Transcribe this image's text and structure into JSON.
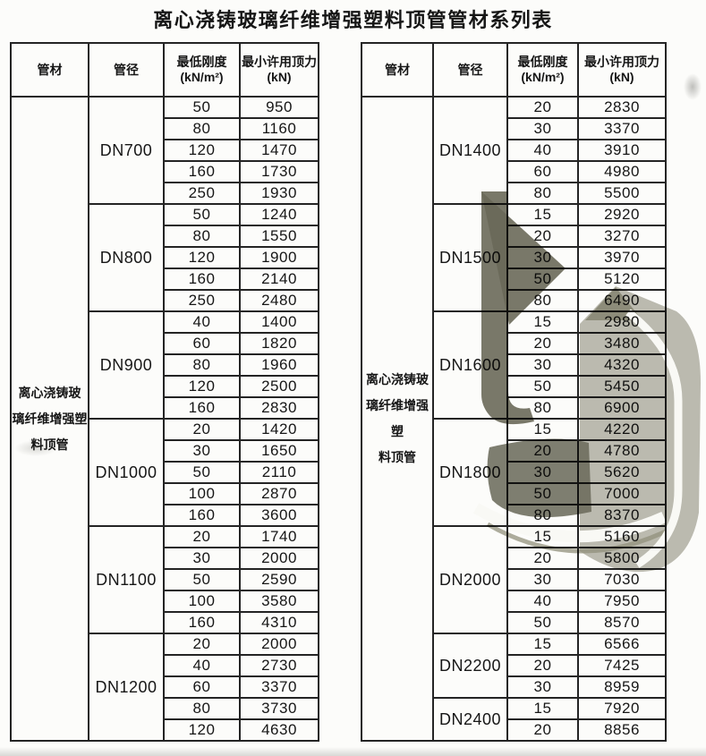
{
  "title": "离心浇铸玻璃纤维增强塑料顶管管材系列表",
  "columns": {
    "material": "管材",
    "diameter": "管径",
    "stiffness": "最低刚度\n(kN/m²)",
    "force": "最小许用顶力\n(kN)"
  },
  "material_label": "离心浇铸玻\n璃纤维增强塑\n料顶管",
  "left_table": {
    "groups": [
      {
        "dn": "DN700",
        "rows": [
          [
            "50",
            "950"
          ],
          [
            "80",
            "1160"
          ],
          [
            "120",
            "1470"
          ],
          [
            "160",
            "1730"
          ],
          [
            "250",
            "1930"
          ]
        ]
      },
      {
        "dn": "DN800",
        "rows": [
          [
            "50",
            "1240"
          ],
          [
            "80",
            "1550"
          ],
          [
            "120",
            "1900"
          ],
          [
            "160",
            "2140"
          ],
          [
            "250",
            "2480"
          ]
        ]
      },
      {
        "dn": "DN900",
        "rows": [
          [
            "40",
            "1400"
          ],
          [
            "60",
            "1820"
          ],
          [
            "80",
            "1960"
          ],
          [
            "120",
            "2500"
          ],
          [
            "160",
            "2830"
          ]
        ]
      },
      {
        "dn": "DN1000",
        "rows": [
          [
            "20",
            "1420"
          ],
          [
            "30",
            "1650"
          ],
          [
            "50",
            "2110"
          ],
          [
            "100",
            "2870"
          ],
          [
            "160",
            "3600"
          ]
        ]
      },
      {
        "dn": "DN1100",
        "rows": [
          [
            "20",
            "1740"
          ],
          [
            "30",
            "2000"
          ],
          [
            "50",
            "2590"
          ],
          [
            "100",
            "3580"
          ],
          [
            "160",
            "4310"
          ]
        ]
      },
      {
        "dn": "DN1200",
        "rows": [
          [
            "20",
            "2000"
          ],
          [
            "40",
            "2730"
          ],
          [
            "60",
            "3370"
          ],
          [
            "80",
            "3730"
          ],
          [
            "120",
            "4630"
          ]
        ]
      }
    ]
  },
  "right_table": {
    "groups": [
      {
        "dn": "DN1400",
        "rows": [
          [
            "20",
            "2830"
          ],
          [
            "30",
            "3370"
          ],
          [
            "40",
            "3910"
          ],
          [
            "60",
            "4980"
          ],
          [
            "80",
            "5500"
          ]
        ]
      },
      {
        "dn": "DN1500",
        "rows": [
          [
            "15",
            "2920"
          ],
          [
            "20",
            "3270"
          ],
          [
            "30",
            "3970"
          ],
          [
            "50",
            "5120"
          ],
          [
            "80",
            "6490"
          ]
        ]
      },
      {
        "dn": "DN1600",
        "rows": [
          [
            "15",
            "2980"
          ],
          [
            "20",
            "3480"
          ],
          [
            "30",
            "4320"
          ],
          [
            "50",
            "5450"
          ],
          [
            "80",
            "6900"
          ]
        ]
      },
      {
        "dn": "DN1800",
        "rows": [
          [
            "15",
            "4220"
          ],
          [
            "20",
            "4780"
          ],
          [
            "30",
            "5620"
          ],
          [
            "50",
            "7000"
          ],
          [
            "80",
            "8370"
          ]
        ]
      },
      {
        "dn": "DN2000",
        "rows": [
          [
            "15",
            "5160"
          ],
          [
            "20",
            "5800"
          ],
          [
            "30",
            "7030"
          ],
          [
            "40",
            "7950"
          ],
          [
            "50",
            "8570"
          ]
        ]
      },
      {
        "dn": "DN2200",
        "rows": [
          [
            "15",
            "6566"
          ],
          [
            "20",
            "7425"
          ],
          [
            "30",
            "8959"
          ]
        ]
      },
      {
        "dn": "DN2400",
        "rows": [
          [
            "15",
            "7920"
          ],
          [
            "20",
            "8856"
          ]
        ]
      }
    ]
  },
  "colors": {
    "paper": "#fcfcfa",
    "table_line": "#242424",
    "watermark_dark": "#6b6a5b",
    "watermark_light": "#a3a296"
  }
}
